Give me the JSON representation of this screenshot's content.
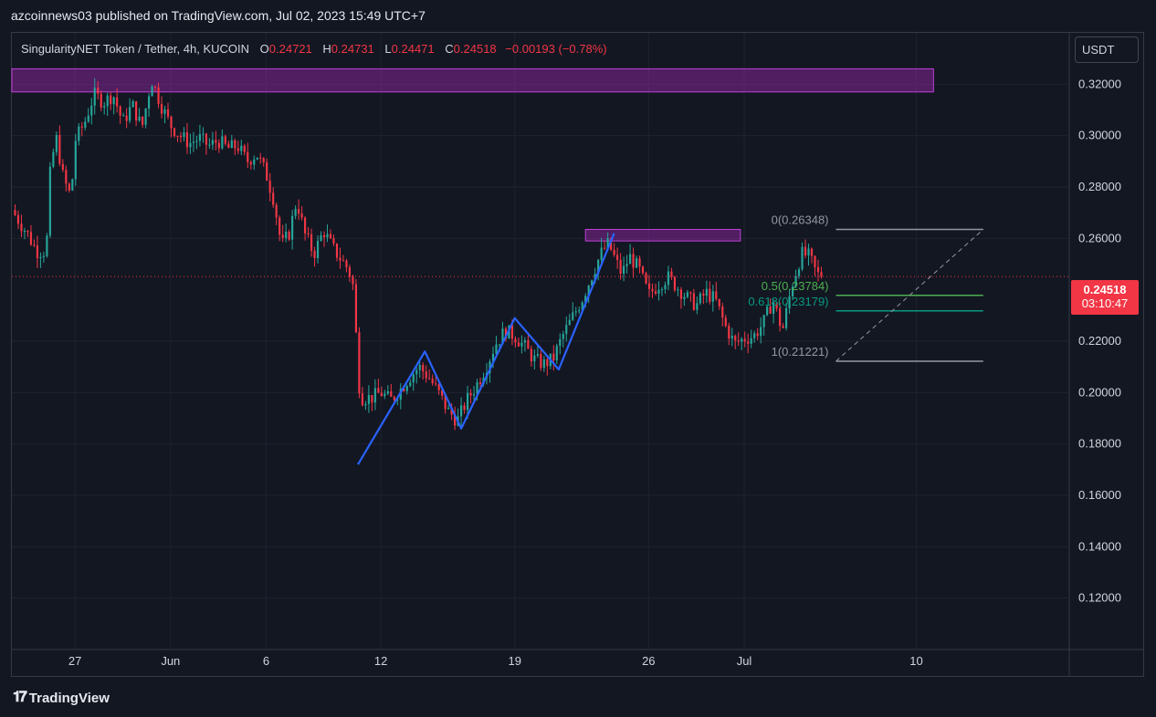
{
  "header": {
    "published": "azcoinnews03 published on TradingView.com, Jul 02, 2023 15:49 UTC+7"
  },
  "legend": {
    "symbol": "SingularityNET Token / Tether, 4h, KUCOIN",
    "open_label": "O",
    "open": "0.24721",
    "high_label": "H",
    "high": "0.24731",
    "low_label": "L",
    "low": "0.24471",
    "close_label": "C",
    "close": "0.24518",
    "change": "−0.00193 (−0.78%)"
  },
  "currency": "USDT",
  "last_price": {
    "value": "0.24518",
    "countdown": "03:10:47"
  },
  "footer": {
    "brand": "TradingView"
  },
  "colors": {
    "up": "#26a69a",
    "down": "#f23645",
    "zone": "#9c27b0",
    "pattern": "#2962ff",
    "fib_half": "#4caf50",
    "fib_618": "#089981"
  },
  "chart_data": {
    "type": "candlestick",
    "ylim": [
      0.1,
      0.34
    ],
    "y_ticks": [
      "0.32000",
      "0.30000",
      "0.28000",
      "0.26000",
      "0.22000",
      "0.20000",
      "0.18000",
      "0.16000",
      "0.14000",
      "0.12000"
    ],
    "y_tick_values": [
      0.32,
      0.3,
      0.28,
      0.26,
      0.22,
      0.2,
      0.18,
      0.16,
      0.14,
      0.12
    ],
    "x_ticks": [
      "27",
      "Jun",
      "6",
      "12",
      "19",
      "26",
      "Jul",
      "10"
    ],
    "x_tick_day_index": [
      0,
      5,
      10,
      16,
      23,
      30,
      35,
      44
    ],
    "x_range_days": [
      -3.3,
      52.0
    ],
    "price_path": [
      [
        -3.3,
        0.271
      ],
      [
        -2.5,
        0.262
      ],
      [
        -2,
        0.255
      ],
      [
        -1.5,
        0.255
      ],
      [
        -1.3,
        0.285
      ],
      [
        -1,
        0.3
      ],
      [
        -0.6,
        0.283
      ],
      [
        -0.2,
        0.276
      ],
      [
        0,
        0.298
      ],
      [
        0.5,
        0.305
      ],
      [
        1,
        0.316
      ],
      [
        1.5,
        0.313
      ],
      [
        2,
        0.316
      ],
      [
        2.5,
        0.305
      ],
      [
        3,
        0.312
      ],
      [
        3.5,
        0.303
      ],
      [
        4,
        0.322
      ],
      [
        4.5,
        0.312
      ],
      [
        5,
        0.304
      ],
      [
        5.5,
        0.3
      ],
      [
        6,
        0.297
      ],
      [
        6.5,
        0.299
      ],
      [
        7,
        0.296
      ],
      [
        7.5,
        0.298
      ],
      [
        8,
        0.295
      ],
      [
        8.5,
        0.296
      ],
      [
        9,
        0.29
      ],
      [
        9.5,
        0.293
      ],
      [
        10,
        0.285
      ],
      [
        10.4,
        0.275
      ],
      [
        10.8,
        0.257
      ],
      [
        11.2,
        0.262
      ],
      [
        11.6,
        0.275
      ],
      [
        12,
        0.262
      ],
      [
        12.5,
        0.254
      ],
      [
        13,
        0.263
      ],
      [
        13.5,
        0.256
      ],
      [
        14,
        0.251
      ],
      [
        14.3,
        0.248
      ],
      [
        14.6,
        0.24
      ],
      [
        14.8,
        0.205
      ],
      [
        15,
        0.198
      ],
      [
        15.5,
        0.198
      ],
      [
        16,
        0.2
      ],
      [
        16.5,
        0.197
      ],
      [
        17,
        0.201
      ],
      [
        17.5,
        0.206
      ],
      [
        18,
        0.21
      ],
      [
        18.5,
        0.206
      ],
      [
        19,
        0.2
      ],
      [
        19.5,
        0.193
      ],
      [
        20,
        0.189
      ],
      [
        20.5,
        0.197
      ],
      [
        21,
        0.203
      ],
      [
        21.5,
        0.21
      ],
      [
        22,
        0.219
      ],
      [
        22.5,
        0.224
      ],
      [
        23,
        0.222
      ],
      [
        23.5,
        0.218
      ],
      [
        24,
        0.213
      ],
      [
        24.5,
        0.211
      ],
      [
        25,
        0.213
      ],
      [
        25.5,
        0.222
      ],
      [
        26,
        0.229
      ],
      [
        26.5,
        0.236
      ],
      [
        27,
        0.245
      ],
      [
        27.5,
        0.254
      ],
      [
        27.9,
        0.258
      ],
      [
        28.3,
        0.251
      ],
      [
        28.6,
        0.246
      ],
      [
        29,
        0.253
      ],
      [
        29.5,
        0.248
      ],
      [
        30,
        0.238
      ],
      [
        30.5,
        0.242
      ],
      [
        31,
        0.245
      ],
      [
        31.5,
        0.241
      ],
      [
        32,
        0.237
      ],
      [
        32.5,
        0.234
      ],
      [
        33,
        0.239
      ],
      [
        33.5,
        0.236
      ],
      [
        34,
        0.226
      ],
      [
        34.5,
        0.219
      ],
      [
        35,
        0.221
      ],
      [
        35.5,
        0.222
      ],
      [
        36,
        0.227
      ],
      [
        36.5,
        0.236
      ],
      [
        37,
        0.224
      ],
      [
        37.5,
        0.242
      ],
      [
        38,
        0.254
      ],
      [
        38.4,
        0.253
      ],
      [
        38.8,
        0.246
      ],
      [
        39.1,
        0.24518
      ]
    ],
    "pattern": [
      [
        14.8,
        0.172
      ],
      [
        18.3,
        0.216
      ],
      [
        20.2,
        0.186
      ],
      [
        23.0,
        0.229
      ],
      [
        25.3,
        0.209
      ],
      [
        28.2,
        0.262
      ]
    ],
    "zones": [
      {
        "days": [
          -3.3,
          44.9
        ],
        "price": [
          0.317,
          0.326
        ]
      },
      {
        "days": [
          26.7,
          34.8
        ],
        "price": [
          0.259,
          0.2635
        ]
      }
    ],
    "last_price": 0.24518,
    "fib": {
      "levels": [
        {
          "label": "0(0.26348)",
          "ratio": 0,
          "price": 0.26348
        },
        {
          "label": "0.5(0.23784)",
          "ratio": 0.5,
          "price": 0.23784
        },
        {
          "label": "0.618(0.23179)",
          "ratio": 0.618,
          "price": 0.23179
        },
        {
          "label": "1(0.21221)",
          "ratio": 1,
          "price": 0.21221
        }
      ],
      "line_days": [
        39.8,
        47.5
      ]
    }
  }
}
